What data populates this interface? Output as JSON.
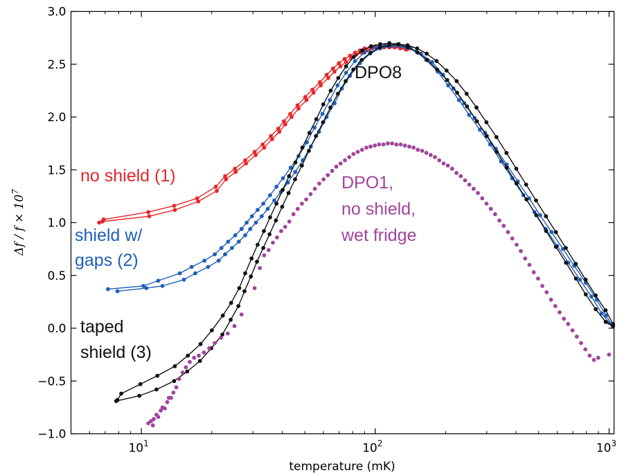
{
  "chart_data": {
    "type": "scatter",
    "title": "",
    "xlabel": "temperature (mK)",
    "ylabel": "Δf/f × 10^7",
    "xscale": "log",
    "xlim": [
      5,
      1050
    ],
    "ylim": [
      -1.0,
      3.0
    ],
    "x_ticks": [
      {
        "value": 10,
        "label": "10",
        "sup": "1"
      },
      {
        "value": 100,
        "label": "10",
        "sup": "2"
      },
      {
        "value": 1000,
        "label": "10",
        "sup": "3"
      }
    ],
    "y_ticks": [
      "−1.0",
      "−0.5",
      "0.0",
      "0.5",
      "1.0",
      "1.5",
      "2.0",
      "2.5",
      "3.0"
    ],
    "y_tick_values": [
      -1.0,
      -0.5,
      0.0,
      0.5,
      1.0,
      1.5,
      2.0,
      2.5,
      3.0
    ],
    "series": [
      {
        "color": "#e8262a",
        "style": "line-markers",
        "branches": [
          {
            "x": [
              6.6,
              6.9,
              10.7,
              13.8,
              17.3,
              20.8,
              22.8,
              25.1,
              27.8,
              30.5,
              33.0,
              35.8,
              38.5,
              40.7,
              43.3,
              46.5,
              50.2,
              53.9,
              58.0,
              62.0,
              66.0,
              70.0,
              74.0,
              78.0,
              82.0,
              86.0,
              90.0,
              95.0,
              100.0,
              106.0,
              112.0,
              118.0,
              124.0,
              130.0,
              137.0
            ],
            "y": [
              1.0,
              1.03,
              1.1,
              1.16,
              1.23,
              1.34,
              1.44,
              1.51,
              1.59,
              1.67,
              1.74,
              1.82,
              1.89,
              1.96,
              2.03,
              2.11,
              2.19,
              2.26,
              2.33,
              2.4,
              2.46,
              2.51,
              2.55,
              2.58,
              2.61,
              2.63,
              2.65,
              2.66,
              2.67,
              2.67,
              2.67,
              2.67,
              2.67,
              2.66,
              2.64
            ]
          },
          {
            "x": [
              6.8,
              10.8,
              13.9,
              17.5,
              21.0,
              23.0,
              25.3,
              28.0,
              30.8,
              33.5,
              36.2,
              38.9,
              41.2,
              43.9,
              47.0,
              50.8,
              54.5,
              58.5,
              63.0,
              67.0,
              71.0,
              75.0,
              79.0,
              83.0,
              87.0,
              92.0,
              97.0,
              103.0,
              109.0,
              115.0,
              121.0,
              128.0,
              135.0
            ],
            "y": [
              1.01,
              1.06,
              1.12,
              1.2,
              1.3,
              1.41,
              1.48,
              1.56,
              1.64,
              1.71,
              1.79,
              1.86,
              1.93,
              2.0,
              2.08,
              2.16,
              2.23,
              2.3,
              2.37,
              2.43,
              2.48,
              2.52,
              2.56,
              2.59,
              2.61,
              2.63,
              2.65,
              2.66,
              2.66,
              2.66,
              2.66,
              2.65,
              2.64
            ]
          }
        ]
      },
      {
        "color": "#1f5fb8",
        "style": "line-markers",
        "branches": [
          {
            "x": [
              7.2,
              10.2,
              11.8,
              14.6,
              16.4,
              18.6,
              20.6,
              22.0,
              23.5,
              25.2,
              26.8,
              28.2,
              29.7,
              31.4,
              33.2,
              35.5,
              37.8,
              40.3,
              43.5,
              47.0,
              51.0,
              55.0,
              59.5,
              64.0,
              69.0,
              75.0,
              82.0,
              90.0,
              100.0,
              110.0,
              122.0,
              135.0,
              150.0,
              165.0,
              185.0,
              205.0,
              228.0,
              252.0,
              280.0,
              310.0,
              345.0,
              385.0,
              430.0,
              480.0,
              535.0,
              600.0,
              670.0,
              750.0,
              840.0,
              930.0,
              1000.0,
              1040.0
            ],
            "y": [
              0.37,
              0.4,
              0.45,
              0.52,
              0.58,
              0.64,
              0.7,
              0.76,
              0.82,
              0.88,
              0.94,
              1.0,
              1.06,
              1.12,
              1.18,
              1.26,
              1.34,
              1.42,
              1.52,
              1.63,
              1.76,
              1.9,
              2.03,
              2.16,
              2.3,
              2.42,
              2.53,
              2.61,
              2.66,
              2.68,
              2.68,
              2.66,
              2.62,
              2.54,
              2.43,
              2.3,
              2.16,
              2.02,
              1.88,
              1.74,
              1.58,
              1.42,
              1.26,
              1.1,
              0.94,
              0.78,
              0.62,
              0.46,
              0.3,
              0.14,
              0.05,
              0.02
            ]
          },
          {
            "x": [
              7.9,
              10.5,
              12.3,
              15.2,
              17.0,
              19.3,
              21.4,
              22.8,
              24.4,
              26.1,
              27.8,
              29.2,
              30.9,
              32.7,
              34.7,
              37.0,
              39.5,
              42.3,
              45.5,
              49.0,
              53.0,
              57.5,
              62.0,
              67.0,
              72.0,
              78.0,
              86.0,
              95.0,
              105.0,
              116.0,
              128.0,
              142.0,
              157.0,
              175.0,
              195.0,
              216.0,
              240.0,
              266.0,
              295.0,
              328.0,
              365.0,
              407.0,
              455.0,
              507.0,
              567.0,
              635.0,
              710.0,
              795.0,
              885.0,
              970.0,
              1030.0
            ],
            "y": [
              0.35,
              0.38,
              0.4,
              0.46,
              0.52,
              0.58,
              0.64,
              0.7,
              0.76,
              0.82,
              0.88,
              0.94,
              1.0,
              1.06,
              1.13,
              1.21,
              1.29,
              1.38,
              1.48,
              1.59,
              1.72,
              1.86,
              2.0,
              2.13,
              2.27,
              2.39,
              2.51,
              2.6,
              2.65,
              2.67,
              2.67,
              2.65,
              2.6,
              2.52,
              2.4,
              2.27,
              2.13,
              1.99,
              1.85,
              1.7,
              1.55,
              1.39,
              1.23,
              1.07,
              0.91,
              0.75,
              0.59,
              0.43,
              0.27,
              0.12,
              0.03
            ]
          }
        ]
      },
      {
        "color": "#111111",
        "style": "line-markers",
        "branches": [
          {
            "x": [
              7.9,
              8.2,
              9.9,
              11.7,
              13.9,
              15.8,
              17.9,
              20.0,
              22.3,
              24.2,
              26.2,
              27.8,
              29.6,
              31.4,
              33.4,
              35.5,
              37.8,
              40.2,
              42.8,
              45.6,
              48.8,
              52.3,
              56.0,
              60.0,
              64.5,
              69.5,
              75.0,
              81.0,
              88.0,
              96.0,
              105.0,
              115.0,
              126.0,
              138.0,
              152.0,
              167.0,
              184.0,
              203.0,
              224.0,
              247.0,
              272.0,
              300.0,
              331.0,
              365.0,
              402.0,
              443.0,
              488.0,
              538.0,
              593.0,
              654.0,
              721.0,
              795.0,
              877.0,
              967.0,
              1040.0
            ],
            "y": [
              -0.68,
              -0.62,
              -0.53,
              -0.45,
              -0.36,
              -0.26,
              -0.15,
              -0.02,
              0.12,
              0.24,
              0.38,
              0.52,
              0.66,
              0.79,
              0.92,
              1.05,
              1.18,
              1.31,
              1.44,
              1.57,
              1.71,
              1.85,
              1.98,
              2.12,
              2.25,
              2.37,
              2.48,
              2.57,
              2.63,
              2.67,
              2.69,
              2.7,
              2.69,
              2.66,
              2.61,
              2.54,
              2.45,
              2.35,
              2.23,
              2.1,
              1.96,
              1.82,
              1.67,
              1.52,
              1.37,
              1.22,
              1.07,
              0.92,
              0.77,
              0.62,
              0.47,
              0.32,
              0.18,
              0.06,
              0.02
            ]
          },
          {
            "x": [
              7.8,
              9.8,
              11.6,
              13.8,
              15.7,
              17.8,
              19.9,
              22.2,
              24.1,
              26.0,
              27.6,
              29.4,
              31.2,
              33.2,
              35.3,
              37.6,
              40.0,
              42.6,
              45.4,
              48.6,
              52.0,
              55.8,
              59.8,
              64.3,
              69.2,
              74.7,
              80.6,
              87.5,
              95.5,
              104.5,
              114.5,
              125.5,
              137.5,
              151.0,
              166.0,
              183.0,
              202.0,
              223.0,
              246.0,
              271.0,
              299.0,
              330.0,
              364.0,
              401.0,
              442.0,
              487.0,
              537.0,
              592.0,
              653.0,
              720.0,
              794.0,
              876.0,
              966.0,
              1040.0
            ],
            "y": [
              -0.69,
              -0.64,
              -0.58,
              -0.5,
              -0.41,
              -0.31,
              -0.19,
              -0.06,
              0.08,
              0.21,
              0.35,
              0.49,
              0.63,
              0.76,
              0.89,
              1.02,
              1.15,
              1.28,
              1.41,
              1.54,
              1.68,
              1.82,
              1.95,
              2.09,
              2.22,
              2.34,
              2.45,
              2.54,
              2.61,
              2.66,
              2.68,
              2.69,
              2.68,
              2.65,
              2.6,
              2.53,
              2.44,
              2.34,
              2.22,
              2.09,
              1.95,
              1.81,
              1.66,
              1.51,
              1.36,
              1.21,
              1.06,
              0.91,
              0.76,
              0.61,
              0.46,
              0.31,
              0.17,
              0.04
            ]
          }
        ]
      },
      {
        "color": "#a0449c",
        "style": "markers",
        "branches": [
          {
            "x": [
              10.7,
              11.0,
              11.2,
              11.3,
              11.6,
              11.8,
              12.1,
              12.3,
              12.6,
              12.9,
              13.1,
              13.4,
              13.7,
              14.1,
              14.5,
              15.0,
              15.5,
              16.1,
              16.8,
              17.6,
              18.5,
              19.5,
              20.6,
              21.9,
              23.4,
              25.0,
              26.8,
              30.5,
              32.1,
              33.5,
              35.0,
              36.5,
              38.0,
              39.6,
              41.2,
              42.9,
              44.7,
              46.6,
              48.6,
              50.7,
              52.9,
              55.2,
              57.6,
              60.1,
              62.7,
              65.4,
              68.2,
              71.1,
              74.2,
              77.4,
              80.7,
              84.2,
              87.8,
              91.6,
              95.5,
              99.6,
              103.9,
              108.4,
              113.1,
              118.0,
              123.1,
              128.4,
              134.0,
              139.8,
              145.8,
              152.1,
              158.7,
              165.5,
              172.6,
              180.1,
              187.9,
              196.0,
              204.5,
              213.3,
              222.5,
              232.1,
              242.1,
              252.6,
              263.5,
              274.9,
              286.8,
              299.2,
              312.1,
              325.6,
              339.6,
              354.3,
              369.6,
              385.6,
              402.3,
              419.7,
              437.8,
              456.7,
              476.4,
              497.0,
              518.5,
              540.9,
              564.3,
              588.7,
              614.1,
              640.7,
              668.4,
              697.3,
              727.4,
              758.8,
              791.6,
              825.8,
              861.5,
              898.7,
              1000.0
            ],
            "y": [
              -0.9,
              -0.88,
              -0.92,
              -0.86,
              -0.82,
              -0.84,
              -0.78,
              -0.75,
              -0.76,
              -0.7,
              -0.66,
              -0.66,
              -0.61,
              -0.56,
              -0.48,
              -0.42,
              -0.37,
              -0.32,
              -0.28,
              -0.26,
              -0.23,
              -0.19,
              -0.14,
              -0.09,
              -0.05,
              0.02,
              0.13,
              0.38,
              0.57,
              0.69,
              0.74,
              0.81,
              0.86,
              0.92,
              0.96,
              1.01,
              1.08,
              1.13,
              1.18,
              1.22,
              1.27,
              1.32,
              1.37,
              1.41,
              1.45,
              1.49,
              1.53,
              1.56,
              1.59,
              1.62,
              1.65,
              1.67,
              1.69,
              1.71,
              1.72,
              1.73,
              1.74,
              1.74,
              1.75,
              1.75,
              1.74,
              1.74,
              1.73,
              1.72,
              1.71,
              1.69,
              1.68,
              1.66,
              1.64,
              1.62,
              1.59,
              1.56,
              1.54,
              1.51,
              1.47,
              1.44,
              1.4,
              1.36,
              1.32,
              1.28,
              1.23,
              1.18,
              1.13,
              1.08,
              1.02,
              0.97,
              0.91,
              0.85,
              0.79,
              0.73,
              0.66,
              0.6,
              0.53,
              0.47,
              0.4,
              0.34,
              0.27,
              0.21,
              0.15,
              0.09,
              0.04,
              -0.02,
              -0.08,
              -0.14,
              -0.2,
              -0.26,
              -0.3,
              -0.28,
              -0.25
            ]
          }
        ]
      }
    ],
    "annotations": [
      {
        "lines": [
          "no shield (1)"
        ],
        "color": "#e8262a"
      },
      {
        "lines": [
          "shield w/",
          "gaps (2)"
        ],
        "color": "#1f5fb8"
      },
      {
        "lines": [
          "taped",
          "shield (3)"
        ],
        "color": "#111111"
      },
      {
        "lines": [
          "DPO8"
        ],
        "color": "#111111"
      },
      {
        "lines": [
          "DPO1,",
          "no shield,",
          "wet fridge"
        ],
        "color": "#a0449c"
      }
    ],
    "grid": false,
    "legend": "none"
  }
}
